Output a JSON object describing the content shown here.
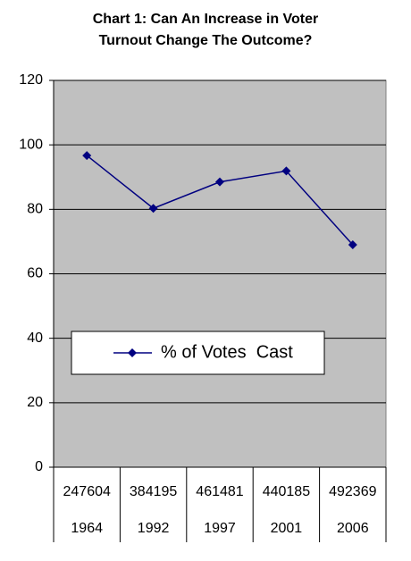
{
  "chart_data": {
    "type": "line",
    "title": "Chart 1: Can An Increase in Voter Turnout Change The Outcome?",
    "categories": [
      "1964",
      "1992",
      "1997",
      "2001",
      "2006"
    ],
    "table_row": [
      "247604",
      "384195",
      "461481",
      "440185",
      "492369"
    ],
    "series": [
      {
        "name": "% of Votes  Cast",
        "color": "#000080",
        "values": [
          96.7,
          80.3,
          88.5,
          91.9,
          69.0
        ]
      }
    ],
    "ylim": [
      0,
      120
    ],
    "yticks": [
      0,
      20,
      40,
      60,
      80,
      100,
      120
    ],
    "grid": true,
    "plot_background": "#c0c0c0"
  }
}
